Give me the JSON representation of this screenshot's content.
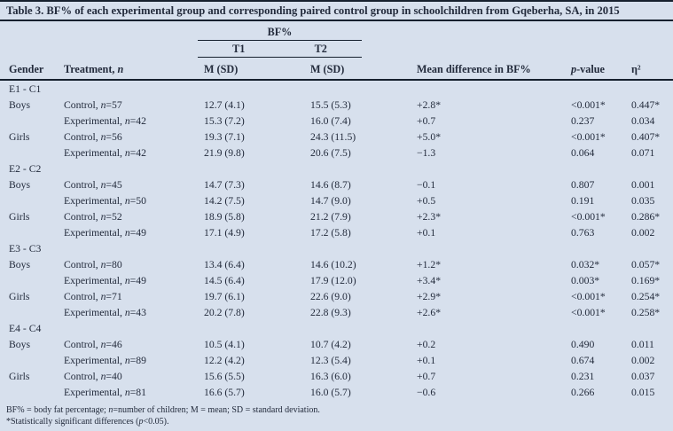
{
  "title": "Table 3. BF% of each experimental group and corresponding paired control group in schoolchildren from Gqeberha, SA, in 2015",
  "colors": {
    "background": "#d7e0ed",
    "text": "#232b3c",
    "rule": "#16202e"
  },
  "table": {
    "spanner": "BF%",
    "time_labels": [
      "T1",
      "T2"
    ],
    "columns": [
      "Gender",
      "Treatment, n",
      "M (SD)",
      "M (SD)",
      "Mean difference in BF%",
      "p-value",
      "η²"
    ],
    "sections": [
      {
        "label": "E1 - C1",
        "rows": [
          {
            "gender": "Boys",
            "treatment": "Control, n=57",
            "t1": "12.7 (4.1)",
            "t2": "15.5 (5.3)",
            "diff": "+2.8*",
            "p": "<0.001*",
            "eta": "0.447*"
          },
          {
            "gender": "",
            "treatment": "Experimental, n=42",
            "t1": "15.3 (7.2)",
            "t2": "16.0 (7.4)",
            "diff": "+0.7",
            "p": "0.237",
            "eta": "0.034"
          },
          {
            "gender": "Girls",
            "treatment": "Control, n=56",
            "t1": "19.3 (7.1)",
            "t2": "24.3 (11.5)",
            "diff": "+5.0*",
            "p": "<0.001*",
            "eta": "0.407*"
          },
          {
            "gender": "",
            "treatment": "Experimental, n=42",
            "t1": "21.9 (9.8)",
            "t2": "20.6 (7.5)",
            "diff": "−1.3",
            "p": "0.064",
            "eta": "0.071"
          }
        ]
      },
      {
        "label": "E2 - C2",
        "rows": [
          {
            "gender": "Boys",
            "treatment": "Control, n=45",
            "t1": "14.7 (7.3)",
            "t2": "14.6 (8.7)",
            "diff": "−0.1",
            "p": "0.807",
            "eta": "0.001"
          },
          {
            "gender": "",
            "treatment": "Experimental, n=50",
            "t1": "14.2 (7.5)",
            "t2": "14.7 (9.0)",
            "diff": "+0.5",
            "p": "0.191",
            "eta": "0.035"
          },
          {
            "gender": "Girls",
            "treatment": "Control, n=52",
            "t1": "18.9 (5.8)",
            "t2": "21.2 (7.9)",
            "diff": "+2.3*",
            "p": "<0.001*",
            "eta": "0.286*"
          },
          {
            "gender": "",
            "treatment": "Experimental, n=49",
            "t1": "17.1 (4.9)",
            "t2": "17.2 (5.8)",
            "diff": "+0.1",
            "p": "0.763",
            "eta": "0.002"
          }
        ]
      },
      {
        "label": "E3 - C3",
        "rows": [
          {
            "gender": "Boys",
            "treatment": "Control, n=80",
            "t1": "13.4 (6.4)",
            "t2": "14.6 (10.2)",
            "diff": "+1.2*",
            "p": "0.032*",
            "eta": "0.057*"
          },
          {
            "gender": "",
            "treatment": "Experimental, n=49",
            "t1": "14.5 (6.4)",
            "t2": "17.9 (12.0)",
            "diff": "+3.4*",
            "p": "0.003*",
            "eta": "0.169*"
          },
          {
            "gender": "Girls",
            "treatment": "Control, n=71",
            "t1": "19.7 (6.1)",
            "t2": "22.6 (9.0)",
            "diff": "+2.9*",
            "p": "<0.001*",
            "eta": "0.254*"
          },
          {
            "gender": "",
            "treatment": "Experimental, n=43",
            "t1": "20.2 (7.8)",
            "t2": "22.8 (9.3)",
            "diff": "+2.6*",
            "p": "<0.001*",
            "eta": "0.258*"
          }
        ]
      },
      {
        "label": "E4 - C4",
        "rows": [
          {
            "gender": "Boys",
            "treatment": "Control, n=46",
            "t1": "10.5 (4.1)",
            "t2": "10.7 (4.2)",
            "diff": "+0.2",
            "p": "0.490",
            "eta": "0.011"
          },
          {
            "gender": "",
            "treatment": "Experimental, n=89",
            "t1": "12.2 (4.2)",
            "t2": "12.3 (5.4)",
            "diff": "+0.1",
            "p": "0.674",
            "eta": "0.002"
          },
          {
            "gender": "Girls",
            "treatment": "Control, n=40",
            "t1": "15.6 (5.5)",
            "t2": "16.3 (6.0)",
            "diff": "+0.7",
            "p": "0.231",
            "eta": "0.037"
          },
          {
            "gender": "",
            "treatment": "Experimental, n=81",
            "t1": "16.6 (5.7)",
            "t2": "16.0 (5.7)",
            "diff": "−0.6",
            "p": "0.266",
            "eta": "0.015"
          }
        ]
      }
    ]
  },
  "footnotes": [
    "BF% = body fat percentage; n=number of children; M = mean; SD = standard deviation.",
    "*Statistically significant differences (p<0.05)."
  ]
}
